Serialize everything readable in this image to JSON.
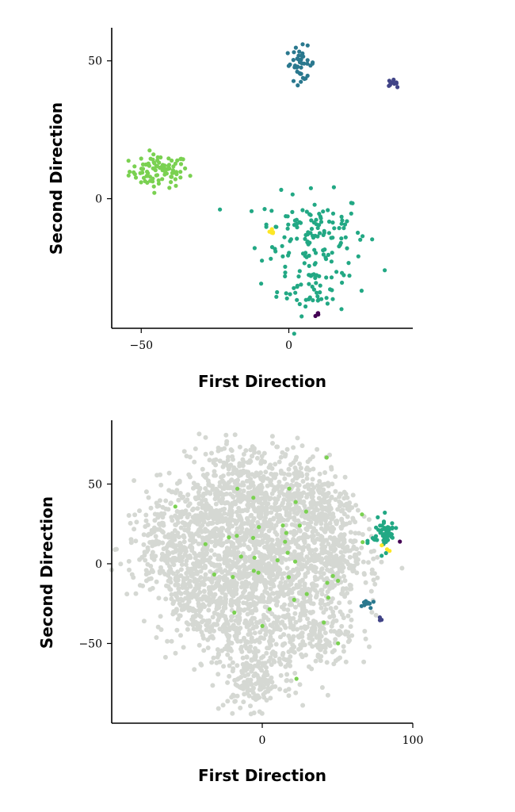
{
  "chart_data": [
    {
      "type": "scatter",
      "title": "",
      "xlabel": "First Direction",
      "ylabel": "Second Direction",
      "xlim": [
        -60,
        42
      ],
      "ylim": [
        -47,
        62
      ],
      "x_ticks": [
        -50,
        0
      ],
      "y_ticks": [
        0,
        50
      ],
      "x_tick_labels": [
        "−50",
        "0"
      ],
      "y_tick_labels": [
        "0",
        "50"
      ],
      "grid": false,
      "series": [
        {
          "color": "#7ad151",
          "center": [
            -44,
            10
          ],
          "spread": [
            5,
            3
          ],
          "count": 90
        },
        {
          "color": "#22a884",
          "center": [
            8,
            -12
          ],
          "spread": [
            9,
            7
          ],
          "count": 120
        },
        {
          "color": "#22a884",
          "center": [
            8,
            -32
          ],
          "spread": [
            6,
            5
          ],
          "count": 60
        },
        {
          "color": "#2a788e",
          "center": [
            4,
            49
          ],
          "spread": [
            2.5,
            3
          ],
          "count": 40
        },
        {
          "color": "#414487",
          "center": [
            35,
            42
          ],
          "spread": [
            0.8,
            0.6
          ],
          "count": 10
        },
        {
          "color": "#fde725",
          "center": [
            -6,
            -13
          ],
          "spread": [
            1,
            1
          ],
          "count": 6
        },
        {
          "color": "#440154",
          "center": [
            10,
            -42
          ],
          "spread": [
            0.5,
            0.3
          ],
          "count": 4
        }
      ]
    },
    {
      "type": "scatter",
      "title": "",
      "xlabel": "First Direction",
      "ylabel": "Second Direction",
      "xlim": [
        -100,
        100
      ],
      "ylim": [
        -100,
        90
      ],
      "x_ticks": [
        0,
        100
      ],
      "y_ticks": [
        -50,
        0,
        50
      ],
      "x_tick_labels": [
        "0",
        "100"
      ],
      "y_tick_labels": [
        "−50",
        "0",
        "50"
      ],
      "grid": false,
      "background_color": "#d5d8d3",
      "series": [
        {
          "color": "#22a884",
          "center": [
            81,
            19
          ],
          "spread": [
            4,
            5
          ],
          "count": 60
        },
        {
          "color": "#2a788e",
          "center": [
            70,
            -25
          ],
          "spread": [
            2,
            1.5
          ],
          "count": 12
        },
        {
          "color": "#414487",
          "center": [
            78,
            -35
          ],
          "spread": [
            0.5,
            0.5
          ],
          "count": 3
        },
        {
          "color": "#fde725",
          "center": [
            83,
            15
          ],
          "spread": [
            2,
            8
          ],
          "count": 3
        },
        {
          "color": "#440154",
          "center": [
            92,
            14
          ],
          "spread": [
            0.3,
            0.3
          ],
          "count": 1
        },
        {
          "color": "#7ad151",
          "center": [
            10,
            0
          ],
          "spread": [
            30,
            30
          ],
          "count": 40
        }
      ]
    }
  ]
}
